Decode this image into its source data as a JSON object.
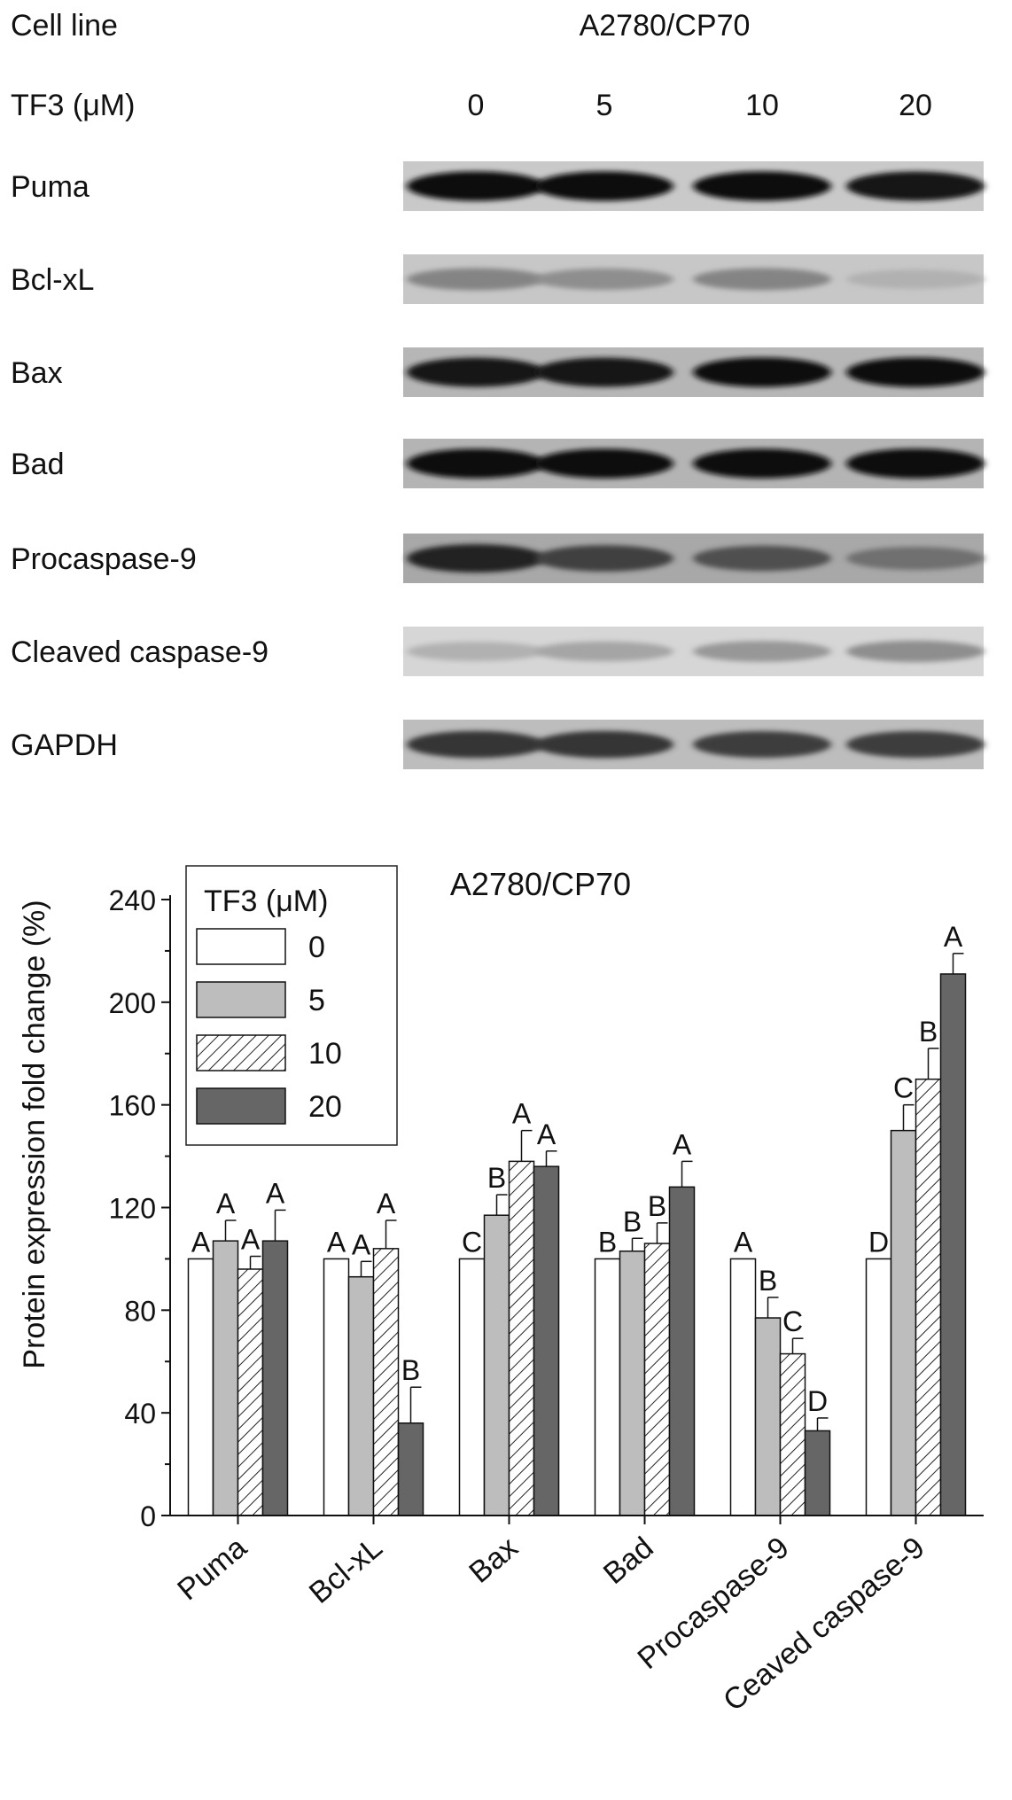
{
  "blot": {
    "cell_line_label": "Cell line",
    "cell_line_value": "A2780/CP70",
    "dose_label": "TF3 (μM)",
    "doses": [
      "0",
      "5",
      "10",
      "20"
    ],
    "rows": [
      {
        "label": "Puma",
        "intensity": [
          0.95,
          0.95,
          0.95,
          0.92
        ],
        "background": "#c9c9c9"
      },
      {
        "label": "Bcl-xL",
        "intensity": [
          0.35,
          0.3,
          0.35,
          0.12
        ],
        "background": "#c7c7c7"
      },
      {
        "label": "Bax",
        "intensity": [
          0.92,
          0.92,
          0.95,
          0.95
        ],
        "background": "#b6b6b6"
      },
      {
        "label": "Bad",
        "intensity": [
          0.95,
          0.95,
          0.95,
          0.97
        ],
        "background": "#b4b4b4"
      },
      {
        "label": "Procaspase-9",
        "intensity": [
          0.85,
          0.7,
          0.62,
          0.45
        ],
        "background": "#a8a8a8"
      },
      {
        "label": "Cleaved caspase-9",
        "intensity": [
          0.12,
          0.18,
          0.25,
          0.3
        ],
        "background": "#d6d6d6"
      },
      {
        "label": "GAPDH",
        "intensity": [
          0.75,
          0.75,
          0.72,
          0.72
        ],
        "background": "#bdbdbd"
      }
    ]
  },
  "chart_data": {
    "type": "bar",
    "title": "A2780/CP70",
    "ylabel": "Protein expression fold change (%)",
    "xlabel": "",
    "ylim": [
      0,
      240
    ],
    "yticks": [
      0,
      40,
      80,
      120,
      160,
      200,
      240
    ],
    "categories": [
      "Puma",
      "Bcl-xL",
      "Bax",
      "Bad",
      "Procaspase-9",
      "Ceaved caspase-9"
    ],
    "legend": {
      "title": "TF3 (μM)",
      "placement": "top-left"
    },
    "series": [
      {
        "name": "0",
        "fill": "white",
        "values": [
          100,
          100,
          100,
          100,
          100,
          100
        ],
        "errors": [
          0,
          0,
          0,
          0,
          0,
          0
        ],
        "letters": [
          "A",
          "A",
          "C",
          "B",
          "A",
          "D"
        ]
      },
      {
        "name": "5",
        "fill": "lightgray",
        "values": [
          107,
          93,
          117,
          103,
          77,
          150
        ],
        "errors": [
          8,
          6,
          8,
          5,
          8,
          10
        ],
        "letters": [
          "A",
          "A",
          "B",
          "B",
          "B",
          "C"
        ]
      },
      {
        "name": "10",
        "fill": "hatched",
        "values": [
          96,
          104,
          138,
          106,
          63,
          170
        ],
        "errors": [
          5,
          11,
          12,
          8,
          6,
          12
        ],
        "letters": [
          "A",
          "A",
          "A",
          "B",
          "C",
          "B"
        ]
      },
      {
        "name": "20",
        "fill": "darkgray",
        "values": [
          107,
          36,
          136,
          128,
          33,
          211
        ],
        "errors": [
          12,
          14,
          6,
          10,
          5,
          8
        ],
        "letters": [
          "A",
          "B",
          "A",
          "A",
          "D",
          "A"
        ]
      }
    ],
    "colors": {
      "white": "#ffffff",
      "lightgray": "#bdbdbd",
      "hatched": "#ffffff",
      "darkgray": "#666666"
    }
  }
}
